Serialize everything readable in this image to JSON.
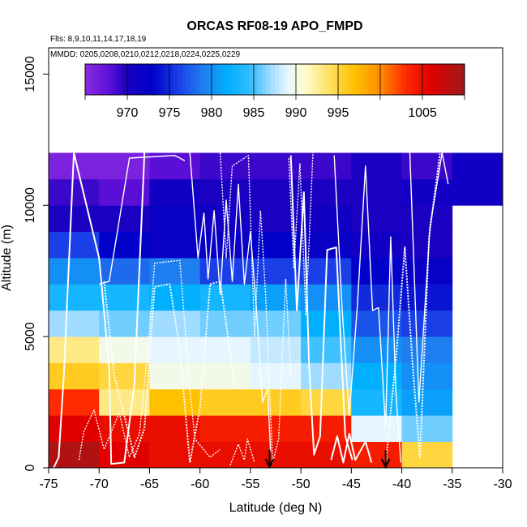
{
  "chart_data": {
    "type": "heatmap",
    "title": "ORCAS RF08-19 APO_FMPD",
    "flights_note": "Flts: 8,9,10,11,14,17,18,19",
    "dates_note": "MMDD: 0205,0208,0210,0212,0218,0224,0225,0229",
    "xlabel": "Latitude (deg N)",
    "ylabel": "Altitude (m)",
    "xlim": [
      -75,
      -30
    ],
    "ylim": [
      0,
      16000
    ],
    "x_ticks": [
      -75,
      -70,
      -65,
      -60,
      -55,
      -50,
      -45,
      -40,
      -35,
      -30
    ],
    "y_ticks": [
      0,
      5000,
      10000,
      15000
    ],
    "bin_width_lat": 5,
    "bin_height_alt": 1000,
    "color_scale": {
      "min": 965,
      "max": 1010,
      "tick_values": [
        970,
        975,
        980,
        985,
        990,
        995,
        1005
      ],
      "stops": [
        {
          "v": 965,
          "c": "#8a2be2"
        },
        {
          "v": 968,
          "c": "#5b0fd6"
        },
        {
          "v": 970,
          "c": "#1a00c0"
        },
        {
          "v": 973,
          "c": "#0000c8"
        },
        {
          "v": 976,
          "c": "#1a3fe6"
        },
        {
          "v": 979,
          "c": "#1e7ff0"
        },
        {
          "v": 982,
          "c": "#00b0ff"
        },
        {
          "v": 985,
          "c": "#3fc0ff"
        },
        {
          "v": 987,
          "c": "#a0dcff"
        },
        {
          "v": 989,
          "c": "#e6f6ff"
        },
        {
          "v": 991,
          "c": "#fffcd0"
        },
        {
          "v": 994,
          "c": "#ffe060"
        },
        {
          "v": 997,
          "c": "#ffc000"
        },
        {
          "v": 1000,
          "c": "#ff8c00"
        },
        {
          "v": 1003,
          "c": "#ff2a00"
        },
        {
          "v": 1006,
          "c": "#e00000"
        },
        {
          "v": 1010,
          "c": "#a01818"
        }
      ]
    },
    "bins_lat_starts": [
      -75,
      -70,
      -65,
      -60,
      -55,
      -50,
      -45,
      -40,
      -35
    ],
    "cells": [
      {
        "alt": 0,
        "values": [
          1009,
          1006,
          1005,
          1005,
          1005,
          1005,
          1004,
          995,
          null
        ]
      },
      {
        "alt": 1000,
        "values": [
          1006,
          1005,
          1005,
          1004,
          1004,
          1004,
          989,
          986,
          null
        ]
      },
      {
        "alt": 2000,
        "values": [
          1003,
          993,
          997,
          996,
          996,
          995,
          983,
          981,
          null
        ]
      },
      {
        "alt": 3000,
        "values": [
          996,
          995,
          990,
          990,
          989,
          987,
          982,
          980,
          null
        ]
      },
      {
        "alt": 4000,
        "values": [
          993,
          990,
          989,
          989,
          988,
          985,
          980,
          979,
          null
        ]
      },
      {
        "alt": 5000,
        "values": [
          987,
          986,
          987,
          986,
          986,
          982,
          977,
          976,
          null
        ]
      },
      {
        "alt": 6000,
        "values": [
          983,
          983,
          982,
          983,
          981,
          980,
          975,
          974,
          null
        ]
      },
      {
        "alt": 7000,
        "values": [
          980,
          978,
          979,
          976,
          976,
          976,
          973,
          972,
          null
        ]
      },
      {
        "alt": 8000,
        "values": [
          976,
          973,
          972,
          972,
          973,
          972,
          971,
          970,
          null
        ]
      },
      {
        "alt": 9000,
        "values": [
          970,
          970,
          972,
          971,
          970,
          971,
          970,
          970,
          null
        ]
      },
      {
        "alt": 10000,
        "values": [
          969,
          968,
          971,
          970,
          970,
          970,
          970,
          971,
          971
        ]
      },
      {
        "alt": 11000,
        "values": [
          966,
          966,
          968,
          969,
          969,
          969,
          970,
          969,
          971
        ]
      }
    ],
    "markers_lat": [
      -53.1,
      -41.6
    ],
    "profiles": [
      [
        [
          -74.5,
          0
        ],
        [
          -74,
          400
        ],
        [
          -73.5,
          3500
        ],
        [
          -72.5,
          12000
        ],
        [
          -70,
          8000
        ],
        [
          -69,
          3800
        ],
        [
          -68.8,
          150
        ],
        [
          -67.5,
          200
        ],
        [
          -66.5,
          3200
        ],
        [
          -65.5,
          12000
        ]
      ],
      [
        [
          -72,
          300
        ],
        [
          -71.5,
          1400
        ],
        [
          -70.5,
          2200
        ],
        [
          -69.5,
          700
        ],
        [
          -68,
          2100
        ],
        [
          -67,
          400
        ],
        [
          -66,
          1300
        ],
        [
          -65,
          5200
        ],
        [
          -64.5,
          7800
        ],
        [
          -62,
          7900
        ],
        [
          -61,
          3000
        ],
        [
          -60.5,
          1100
        ],
        [
          -59,
          400
        ],
        [
          -58,
          700
        ]
      ],
      [
        [
          -70,
          7000
        ],
        [
          -69,
          7100
        ],
        [
          -67,
          11800
        ],
        [
          -62.5,
          11900
        ],
        [
          -61.5,
          11700
        ]
      ],
      [
        [
          -69.5,
          7100
        ],
        [
          -68.5,
          3500
        ],
        [
          -67.5,
          2000
        ],
        [
          -66.5,
          400
        ],
        [
          -65.5,
          1500
        ],
        [
          -64.5,
          6900
        ],
        [
          -63,
          7000
        ],
        [
          -62,
          4500
        ],
        [
          -61,
          200
        ],
        [
          -60,
          2300
        ],
        [
          -59,
          7000
        ],
        [
          -58,
          7100
        ],
        [
          -56.5,
          3000
        ]
      ],
      [
        [
          -61,
          12000
        ],
        [
          -60.2,
          8000
        ],
        [
          -59.6,
          9700
        ],
        [
          -59.2,
          7200
        ],
        [
          -58.6,
          9800
        ],
        [
          -58,
          6600
        ],
        [
          -57.4,
          10200
        ],
        [
          -56.8,
          7100
        ],
        [
          -56.2,
          10800
        ],
        [
          -55.6,
          7000
        ],
        [
          -55,
          9000
        ],
        [
          -54.4,
          6000
        ],
        [
          -53.8,
          2500
        ],
        [
          -53.3,
          3000
        ],
        [
          -53,
          600
        ]
      ],
      [
        [
          -58,
          12000
        ],
        [
          -57.4,
          8000
        ],
        [
          -56.8,
          11500
        ],
        [
          -55.2,
          11900
        ],
        [
          -54.6,
          5000
        ],
        [
          -54,
          9800
        ],
        [
          -53.5,
          6600
        ],
        [
          -52.8,
          200
        ],
        [
          -52.2,
          1100
        ],
        [
          -51.5,
          7200
        ],
        [
          -51,
          3500
        ]
      ],
      [
        [
          -51,
          11900
        ],
        [
          -50.4,
          6000
        ],
        [
          -49.7,
          10500
        ],
        [
          -49.2,
          4000
        ],
        [
          -48.7,
          500
        ],
        [
          -48.1,
          1200
        ],
        [
          -47.4,
          8300
        ],
        [
          -46.5,
          8400
        ],
        [
          -45.6,
          1200
        ],
        [
          -44.9,
          300
        ]
      ],
      [
        [
          -51.2,
          11800
        ],
        [
          -50.7,
          7600
        ],
        [
          -50.1,
          11600
        ],
        [
          -49.5,
          5800
        ],
        [
          -48.8,
          12000
        ]
      ],
      [
        [
          -46.7,
          11900
        ],
        [
          -45.9,
          6000
        ],
        [
          -45.2,
          2000
        ],
        [
          -44.4,
          6200
        ],
        [
          -43.6,
          11500
        ],
        [
          -42.9,
          6000
        ],
        [
          -42.3,
          6100
        ],
        [
          -41.6,
          1500
        ],
        [
          -41.1,
          8800
        ],
        [
          -40.6,
          3000
        ],
        [
          -40.1,
          200
        ]
      ],
      [
        [
          -41.6,
          100
        ],
        [
          -40.5,
          4500
        ],
        [
          -39.7,
          8400
        ],
        [
          -38.9,
          3800
        ],
        [
          -38.2,
          400
        ],
        [
          -37.3,
          8800
        ],
        [
          -36.2,
          12000
        ]
      ],
      [
        [
          -39.2,
          12000
        ],
        [
          -38.3,
          2500
        ],
        [
          -37.2,
          9200
        ],
        [
          -36,
          12000
        ],
        [
          -35.4,
          10800
        ]
      ],
      [
        [
          -57,
          100
        ],
        [
          -56.2,
          900
        ],
        [
          -55.6,
          300
        ],
        [
          -55.3,
          1100
        ],
        [
          -54.6,
          200
        ]
      ],
      [
        [
          -47,
          300
        ],
        [
          -46.4,
          1200
        ],
        [
          -45.8,
          200
        ],
        [
          -45.2,
          1300
        ],
        [
          -44.6,
          300
        ],
        [
          -43.6,
          1000
        ],
        [
          -43,
          200
        ]
      ]
    ]
  }
}
